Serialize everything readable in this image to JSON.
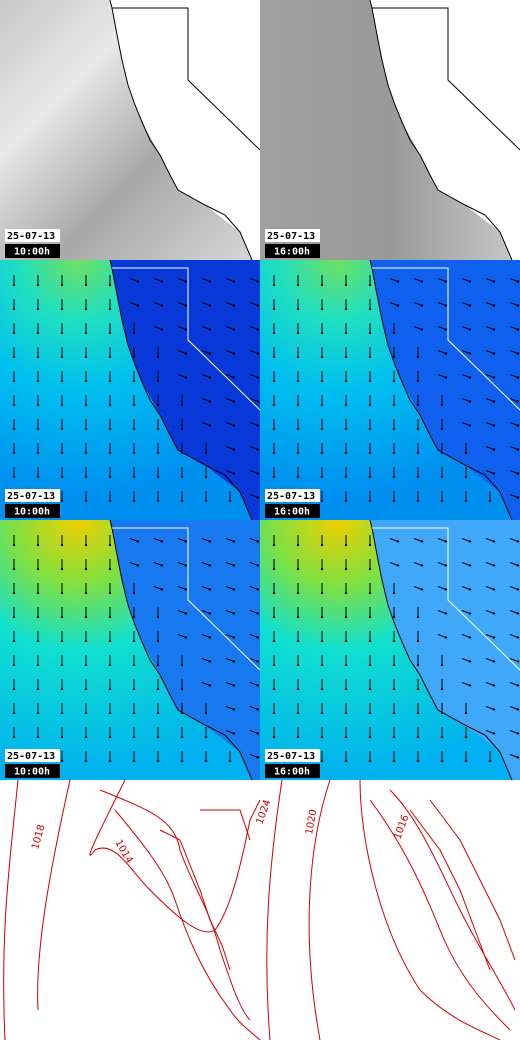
{
  "panels": [
    {
      "date": "25-07-13",
      "time": "10:00h"
    },
    {
      "date": "25-07-13",
      "time": "16:00h"
    },
    {
      "date": "25-07-13",
      "time": "10:00h"
    },
    {
      "date": "25-07-13",
      "time": "16:00h"
    },
    {
      "date": "25-07-13",
      "time": "10:00h"
    },
    {
      "date": "25-07-13",
      "time": "16:00h"
    }
  ],
  "contours": {
    "left": [
      "1018",
      "1014",
      "1024"
    ],
    "right": [
      "1020",
      "1016"
    ]
  }
}
